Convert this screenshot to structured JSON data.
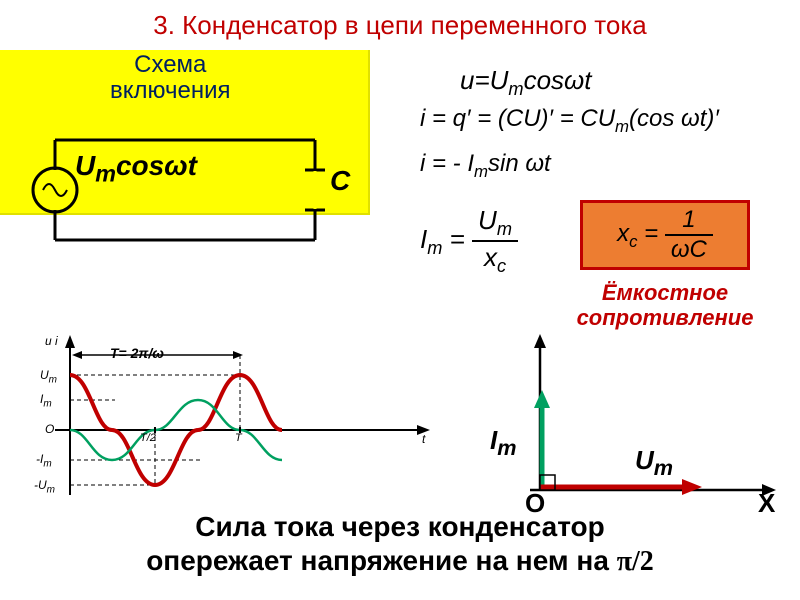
{
  "title": "3. Конденсатор в цепи переменного тока",
  "schema": {
    "label_line1": "Схема",
    "label_line2": "включения",
    "source_html": "U<sub>m</sub>cosωt",
    "cap_label": "C",
    "colors": {
      "box_bg": "#ffff00",
      "schema_text": "#002060",
      "wire": "#000000"
    }
  },
  "equations": {
    "eq1_html": "u=U<sub>m</sub>cosωt",
    "eq2_html": "i = q′ = (CU)′ = CU<sub>m</sub>(cos ωt)′",
    "eq3_html": "i = - I<sub>m</sub>sin ωt",
    "eq4_lhs_html": "I<sub>m</sub> =",
    "eq4_num_html": "U<sub>m</sub>",
    "eq4_den_html": "x<sub>c</sub>",
    "xc_lhs_html": "x<sub>c</sub> =",
    "xc_num": "1",
    "xc_den": "ωC"
  },
  "capacitive": {
    "line1": "Ёмкостное",
    "line2": "сопротивление",
    "color": "#c00000"
  },
  "graph": {
    "period_label": "T= 2π/ω",
    "y_axes_html": "u  i",
    "t_label": "t",
    "labels": {
      "Um": "U<sub>m</sub>",
      "Im": "I<sub>m</sub>",
      "O": "O",
      "nIm": "-I<sub>m</sub>",
      "nUm": "-U<sub>m</sub>",
      "T2": "T/2",
      "T": "T"
    },
    "colors": {
      "u_curve": "#c00000",
      "i_curve": "#00a060",
      "axis": "#000000"
    },
    "linewidth_u": 4,
    "linewidth_i": 2.5
  },
  "phasor": {
    "Im_label_html": "I<sub>m</sub>",
    "Um_label_html": "U<sub>m</sub>",
    "O": "O",
    "X": "X",
    "colors": {
      "axis": "#000000",
      "Im_arrow": "#00a060",
      "Um_arrow": "#c00000"
    }
  },
  "bottom": {
    "line1": "Сила тока через конденсатор",
    "line2_html": "опережает напряжение на нем на <span style='font-family:serif'>π/2</span>"
  }
}
